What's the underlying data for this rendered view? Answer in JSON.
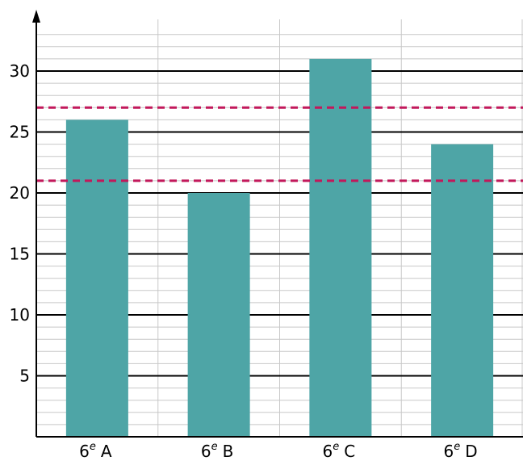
{
  "chart_data": {
    "type": "bar",
    "title": "",
    "xlabel": "",
    "ylabel": "",
    "categories": [
      {
        "main": "6",
        "sup": "e",
        "suffix": "A"
      },
      {
        "main": "6",
        "sup": "e",
        "suffix": "B"
      },
      {
        "main": "6",
        "sup": "e",
        "suffix": "C"
      },
      {
        "main": "6",
        "sup": "e",
        "suffix": "D"
      }
    ],
    "values": [
      26,
      20,
      31,
      24
    ],
    "ylim": [
      0,
      33
    ],
    "yticks": [
      "5",
      "10",
      "15",
      "20",
      "25",
      "30"
    ],
    "yticks_values": [
      5,
      10,
      15,
      20,
      25,
      30
    ],
    "reference_lines": [
      21,
      27
    ],
    "grid": true,
    "minor_grid_step": 1,
    "colors": {
      "bar": "#4ea5a6",
      "reference_line": "#c2185b",
      "major_grid": "#000000",
      "minor_grid": "#c8c8c8"
    }
  }
}
